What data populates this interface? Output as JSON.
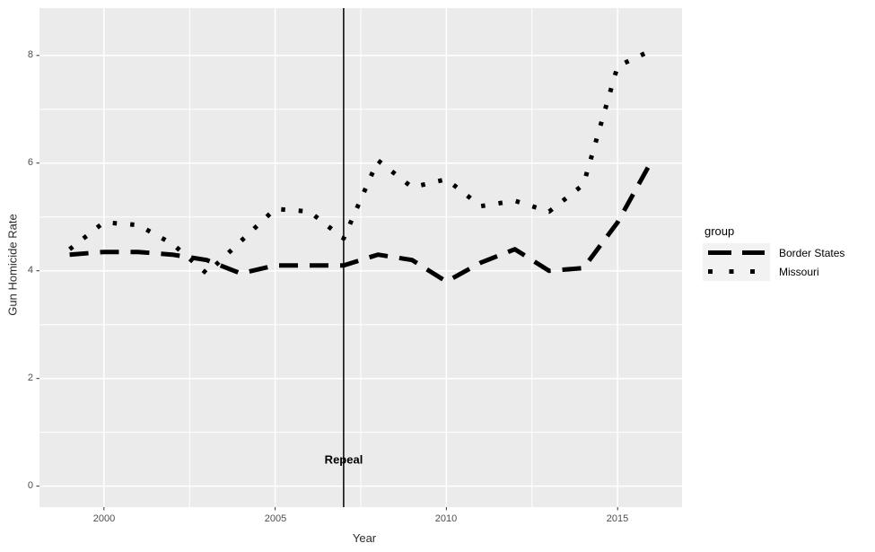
{
  "figure": {
    "background_color": "#FFFFFF",
    "panel_bg_color": "#EBEBEB",
    "grid_color": "#FFFFFF",
    "tick_text_color": "#4D4D4D",
    "axis_title_color": "#2b2b2b",
    "series_line_color": "#000000",
    "legend_key_bg_color": "#F2F2F2"
  },
  "axis_titles": {
    "x": "Year",
    "y": "Gun Homicide Rate"
  },
  "legend": {
    "title": "group",
    "entries": [
      {
        "label": "Border States",
        "style": "dashed"
      },
      {
        "label": "Missouri",
        "style": "dotted"
      }
    ]
  },
  "annotation": {
    "vline_year": 2007,
    "label": "Repeal",
    "label_y_value": 0.5
  },
  "chart_data": {
    "type": "line",
    "title": "",
    "xlabel": "Year",
    "ylabel": "Gun Homicide Rate",
    "grid": true,
    "legend_position": "right",
    "legend_title": "group",
    "x": [
      1999,
      2000,
      2001,
      2002,
      2003,
      2004,
      2005,
      2006,
      2007,
      2008,
      2009,
      2010,
      2011,
      2012,
      2013,
      2014,
      2015,
      2016
    ],
    "series": [
      {
        "name": "Border States",
        "dash": "dashed",
        "values": [
          4.3,
          4.35,
          4.35,
          4.3,
          4.2,
          3.95,
          4.1,
          4.1,
          4.1,
          4.3,
          4.2,
          3.8,
          4.15,
          4.4,
          4.0,
          4.05,
          4.9,
          6.05
        ]
      },
      {
        "name": "Missouri",
        "dash": "dotted",
        "values": [
          4.4,
          4.9,
          4.85,
          4.5,
          3.95,
          4.55,
          5.15,
          5.1,
          4.6,
          6.05,
          5.55,
          5.7,
          5.2,
          5.3,
          5.1,
          5.6,
          7.8,
          8.1
        ]
      }
    ],
    "x_ticks": [
      2000,
      2005,
      2010,
      2015
    ],
    "x_minor_ticks": [
      2002.5,
      2007.5,
      2012.5
    ],
    "y_ticks": [
      0,
      2,
      4,
      6,
      8
    ],
    "y_minor_ticks": [
      1,
      3,
      5,
      7
    ],
    "x_range": [
      1998.12,
      2016.88
    ],
    "y_range": [
      -0.39,
      8.88
    ],
    "vline_x": 2007
  }
}
